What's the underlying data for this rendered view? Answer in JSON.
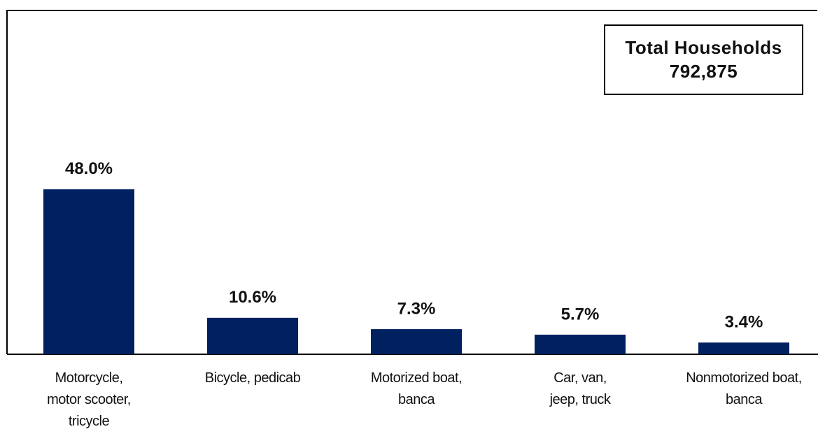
{
  "chart_data": {
    "type": "bar",
    "categories": [
      "Motorcycle,\nmotor scooter,\ntricycle",
      "Bicycle, pedicab",
      "Motorized boat,\nbanca",
      "Car, van,\njeep, truck",
      "Nonmotorized boat,\nbanca"
    ],
    "values": [
      48.0,
      10.6,
      7.3,
      5.7,
      3.4
    ],
    "value_labels": [
      "48.0%",
      "10.6%",
      "7.3%",
      "5.7%",
      "3.4%"
    ],
    "color": "#002060",
    "ylim": [
      0,
      100
    ],
    "annotation": {
      "title": "Total Households",
      "value": "792,875"
    }
  }
}
